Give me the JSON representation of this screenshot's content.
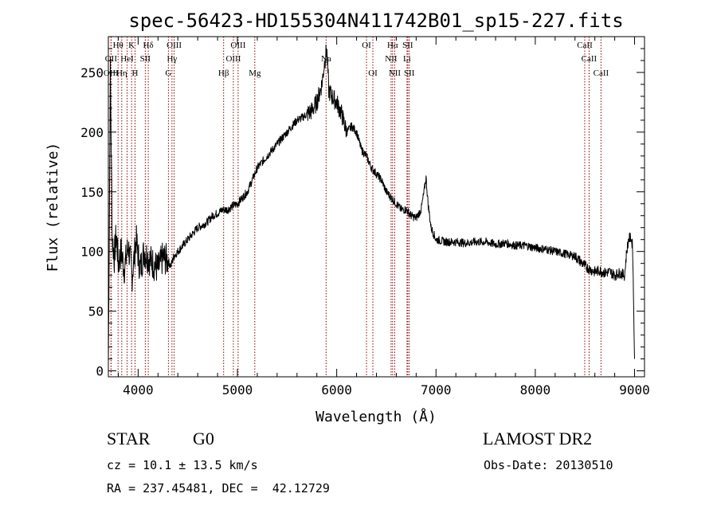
{
  "chart_data": {
    "type": "line",
    "title": "spec-56423-HD155304N411742B01_sp15-227.fits",
    "xlabel": "Wavelength (Å)",
    "ylabel": "Flux (relative)",
    "xlim": [
      3700,
      9100
    ],
    "ylim": [
      -5,
      280
    ],
    "xticks": [
      4000,
      5000,
      6000,
      7000,
      8000,
      9000
    ],
    "yticks": [
      0,
      50,
      100,
      150,
      200,
      250
    ],
    "grid": false,
    "line_color": "#000000",
    "marker_color": "#8b0000",
    "series": [
      {
        "x": [
          3700,
          3720,
          3740,
          3760,
          3780,
          3800,
          3830,
          3860,
          3900,
          3940,
          3980,
          4020,
          4060,
          4100,
          4150,
          4200,
          4250,
          4300,
          4330,
          4360,
          4400,
          4450,
          4500,
          4550,
          4600,
          4650,
          4700,
          4750,
          4800,
          4850,
          4900,
          4950,
          5000,
          5050,
          5100,
          5150,
          5200,
          5250,
          5300,
          5350,
          5400,
          5450,
          5500,
          5550,
          5600,
          5650,
          5700,
          5750,
          5800,
          5850,
          5880,
          5900,
          5920,
          5950,
          6000,
          6050,
          6100,
          6150,
          6200,
          6250,
          6300,
          6350,
          6400,
          6450,
          6500,
          6550,
          6600,
          6650,
          6700,
          6750,
          6800,
          6850,
          6880,
          6900,
          6920,
          6950,
          7000,
          7100,
          7200,
          7300,
          7400,
          7500,
          7600,
          7700,
          7800,
          7900,
          8000,
          8100,
          8200,
          8300,
          8400,
          8500,
          8550,
          8600,
          8650,
          8700,
          8750,
          8800,
          8850,
          8900,
          8920,
          8940,
          8960,
          8980,
          9000
        ],
        "y": [
          5,
          250,
          110,
          95,
          115,
          90,
          100,
          85,
          105,
          80,
          110,
          85,
          100,
          95,
          90,
          85,
          95,
          92,
          88,
          96,
          100,
          105,
          110,
          115,
          120,
          122,
          125,
          130,
          132,
          135,
          135,
          138,
          140,
          145,
          150,
          160,
          170,
          175,
          180,
          185,
          190,
          195,
          200,
          205,
          210,
          212,
          215,
          218,
          225,
          240,
          260,
          270,
          235,
          230,
          225,
          215,
          200,
          205,
          200,
          185,
          180,
          170,
          165,
          160,
          150,
          145,
          140,
          135,
          135,
          130,
          128,
          135,
          150,
          162,
          140,
          120,
          110,
          108,
          108,
          107,
          108,
          108,
          106,
          107,
          105,
          105,
          103,
          102,
          100,
          98,
          96,
          88,
          85,
          83,
          84,
          82,
          83,
          80,
          82,
          80,
          100,
          110,
          112,
          105,
          10
        ]
      }
    ],
    "line_markers": [
      {
        "name": "Hθ",
        "wavelength": 3798,
        "row": 0
      },
      {
        "name": "OII",
        "wavelength": 3727,
        "row": 1
      },
      {
        "name": "OIII",
        "wavelength": 3727,
        "row": 2
      },
      {
        "name": "K",
        "wavelength": 3934,
        "row": 0
      },
      {
        "name": "HeI",
        "wavelength": 3889,
        "row": 1
      },
      {
        "name": "Hη",
        "wavelength": 3835,
        "row": 2
      },
      {
        "name": "Hδ",
        "wavelength": 4102,
        "row": 0
      },
      {
        "name": "SII",
        "wavelength": 4072,
        "row": 1
      },
      {
        "name": "H",
        "wavelength": 3969,
        "row": 2
      },
      {
        "name": "OIII",
        "wavelength": 4363,
        "row": 0
      },
      {
        "name": "Hγ",
        "wavelength": 4341,
        "row": 1
      },
      {
        "name": "G",
        "wavelength": 4305,
        "row": 2
      },
      {
        "name": "OIII",
        "wavelength": 5007,
        "row": 0
      },
      {
        "name": "OIII",
        "wavelength": 4959,
        "row": 1
      },
      {
        "name": "Hβ",
        "wavelength": 4861,
        "row": 2
      },
      {
        "name": "Mg",
        "wavelength": 5175,
        "row": 2
      },
      {
        "name": "Na",
        "wavelength": 5893,
        "row": 1
      },
      {
        "name": "OI",
        "wavelength": 6300,
        "row": 0
      },
      {
        "name": "OI",
        "wavelength": 6364,
        "row": 2
      },
      {
        "name": "Hα",
        "wavelength": 6563,
        "row": 0
      },
      {
        "name": "SII",
        "wavelength": 6716,
        "row": 0
      },
      {
        "name": "NII",
        "wavelength": 6548,
        "row": 1
      },
      {
        "name": "Li",
        "wavelength": 6708,
        "row": 1
      },
      {
        "name": "NII",
        "wavelength": 6584,
        "row": 2
      },
      {
        "name": "SII",
        "wavelength": 6731,
        "row": 2
      },
      {
        "name": "CaII",
        "wavelength": 8498,
        "row": 0
      },
      {
        "name": "CaII",
        "wavelength": 8542,
        "row": 1
      },
      {
        "name": "CaII",
        "wavelength": 8662,
        "row": 2
      }
    ]
  },
  "info": {
    "class_label": "STAR",
    "subclass": "G0",
    "survey": "LAMOST DR2",
    "redshift": "cz = 10.1 ± 13.5 km/s",
    "obs_date": "Obs-Date: 20130510",
    "coords": "RA = 237.45481, DEC =  42.12729"
  }
}
